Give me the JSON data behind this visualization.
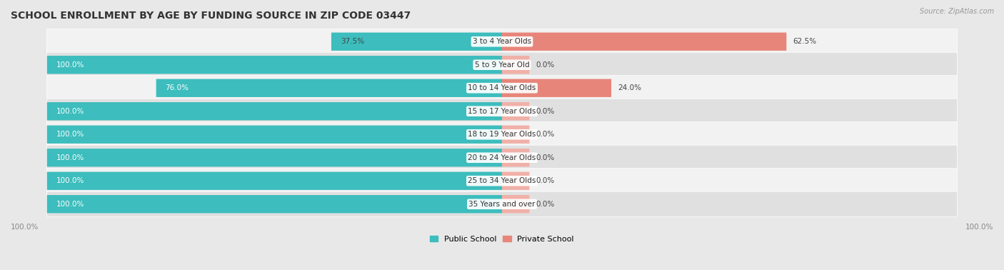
{
  "title": "SCHOOL ENROLLMENT BY AGE BY FUNDING SOURCE IN ZIP CODE 03447",
  "source": "Source: ZipAtlas.com",
  "categories": [
    "3 to 4 Year Olds",
    "5 to 9 Year Old",
    "10 to 14 Year Olds",
    "15 to 17 Year Olds",
    "18 to 19 Year Olds",
    "20 to 24 Year Olds",
    "25 to 34 Year Olds",
    "35 Years and over"
  ],
  "public_values": [
    37.5,
    100.0,
    76.0,
    100.0,
    100.0,
    100.0,
    100.0,
    100.0
  ],
  "private_values": [
    62.5,
    0.0,
    24.0,
    0.0,
    0.0,
    0.0,
    0.0,
    0.0
  ],
  "public_color": "#3dbdbd",
  "private_color": "#e8857a",
  "private_color_light": "#f0b0a8",
  "background_color": "#e8e8e8",
  "row_bg_light": "#f2f2f2",
  "row_bg_dark": "#e0e0e0",
  "title_fontsize": 10,
  "label_fontsize": 7.5,
  "tick_fontsize": 7.5,
  "legend_fontsize": 8,
  "x_left_label": "100.0%",
  "x_right_label": "100.0%"
}
